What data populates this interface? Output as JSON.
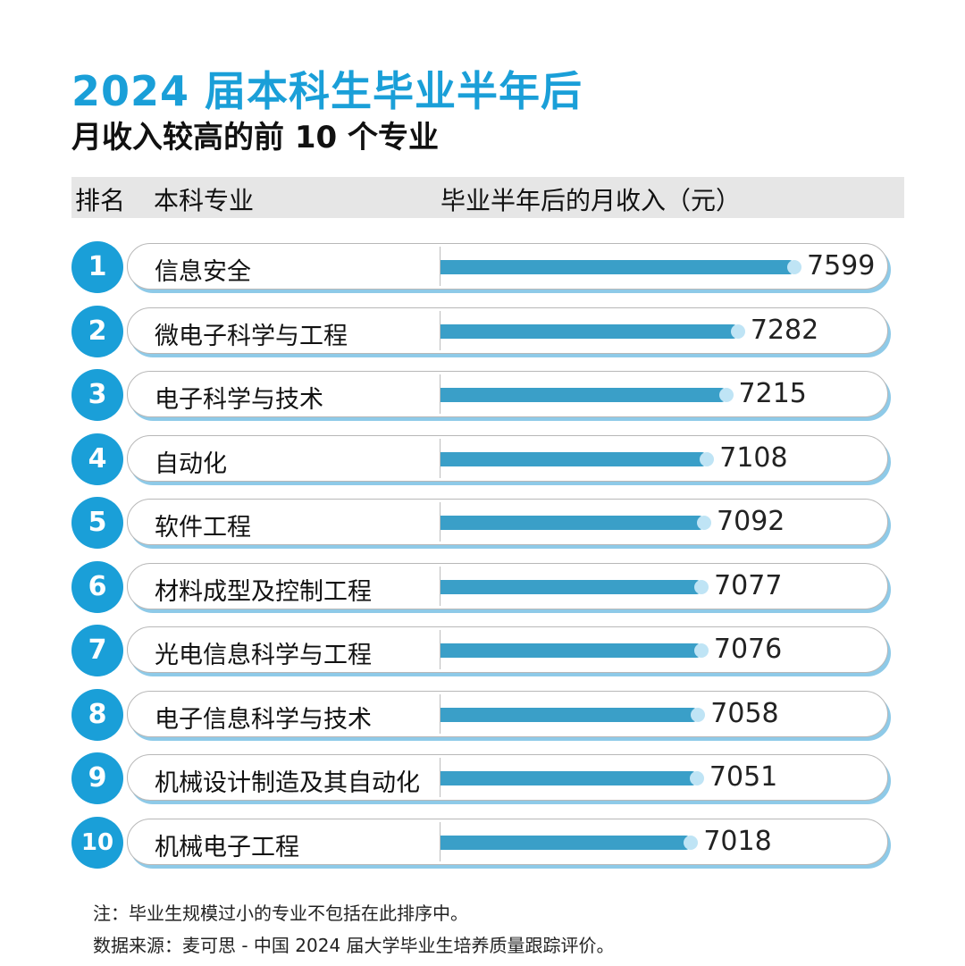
{
  "title": "2024 届本科生毕业半年后",
  "subtitle": "月收入较高的前 10 个专业",
  "header": {
    "rank": "排名",
    "major": "本科专业",
    "income": "毕业半年后的月收入（元）"
  },
  "colors": {
    "accent": "#1a9fd8",
    "bar": "#3a9fc8",
    "dot": "#bfe4f5",
    "header_bg": "#e6e6e6"
  },
  "chart_data": {
    "type": "bar",
    "orientation": "horizontal",
    "title": "2024 届本科生毕业半年后",
    "subtitle": "月收入较高的前 10 个专业",
    "ylabel": "毕业半年后的月收入（元）",
    "ranks": [
      "1",
      "2",
      "3",
      "4",
      "5",
      "6",
      "7",
      "8",
      "9",
      "10"
    ],
    "categories": [
      "信息安全",
      "微电子科学与工程",
      "电子科学与技术",
      "自动化",
      "软件工程",
      "材料成型及控制工程",
      "光电信息科学与工程",
      "电子信息科学与技术",
      "机械设计制造及其自动化",
      "机械电子工程"
    ],
    "values": [
      7599,
      7282,
      7215,
      7108,
      7092,
      7077,
      7076,
      7058,
      7051,
      7018
    ],
    "value_labels": [
      "7599",
      "7282",
      "7215",
      "7108",
      "7092",
      "7077",
      "7076",
      "7058",
      "7051",
      "7018"
    ]
  },
  "footnotes": {
    "note": "注：毕业生规模过小的专业不包括在此排序中。",
    "source": "数据来源：麦可思 - 中国 2024 届大学毕业生培养质量跟踪评价。"
  }
}
